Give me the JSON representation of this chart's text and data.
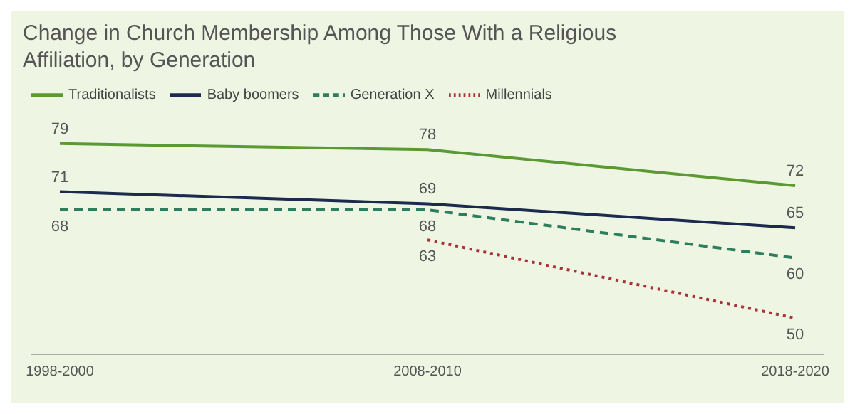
{
  "chart_data": {
    "type": "line",
    "title": "Change in Church Membership Among Those With a Religious Affiliation, by Generation",
    "categories": [
      "1998-2000",
      "2008-2010",
      "2018-2020"
    ],
    "series": [
      {
        "name": "Traditionalists",
        "color": "#5b9a32",
        "values": [
          79,
          78,
          72
        ],
        "line_style": "solid"
      },
      {
        "name": "Baby boomers",
        "color": "#1b2a4e",
        "values": [
          71,
          69,
          65
        ],
        "line_style": "solid"
      },
      {
        "name": "Generation X",
        "color": "#2e7d5e",
        "values": [
          68,
          68,
          60
        ],
        "line_style": "dashed"
      },
      {
        "name": "Millennials",
        "color": "#a8343a",
        "values": [
          null,
          63,
          50
        ],
        "line_style": "dotted"
      }
    ],
    "data_labels": true,
    "legend": "top left",
    "marker": "none"
  }
}
